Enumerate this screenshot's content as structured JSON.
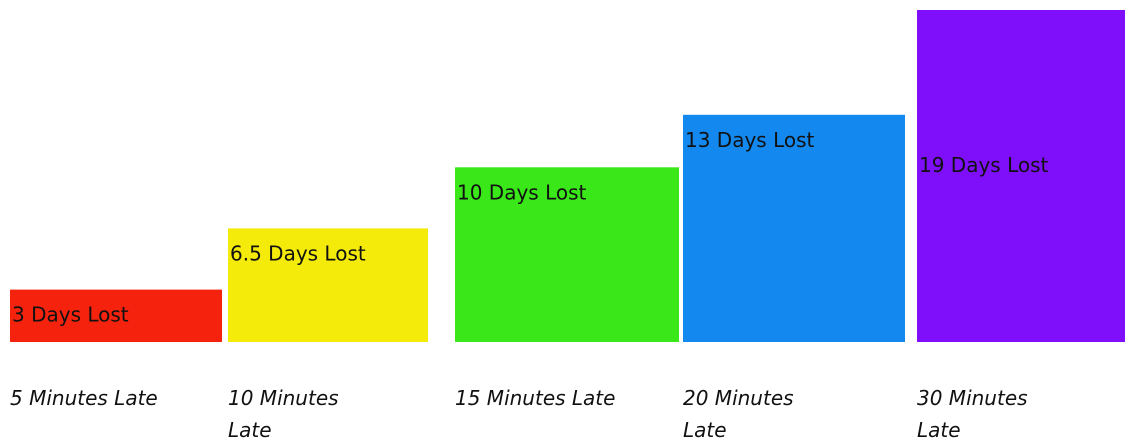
{
  "chart_data": {
    "type": "bar",
    "categories": [
      "5 Minutes Late",
      "10 Minutes Late",
      "15 Minutes Late",
      "20 Minutes Late",
      "30 Minutes Late"
    ],
    "values": [
      3,
      6.5,
      10,
      13,
      19
    ],
    "data_labels": [
      "3 Days Lost",
      "6.5 Days Lost",
      "10 Days Lost",
      "13 Days Lost",
      "19 Days Lost"
    ],
    "colors": [
      "#f5230e",
      "#f5eb0a",
      "#3ae81a",
      "#1389f0",
      "#7f0ffa"
    ],
    "title": "",
    "xlabel": "",
    "ylabel": "",
    "grid": false,
    "legend": "none"
  }
}
